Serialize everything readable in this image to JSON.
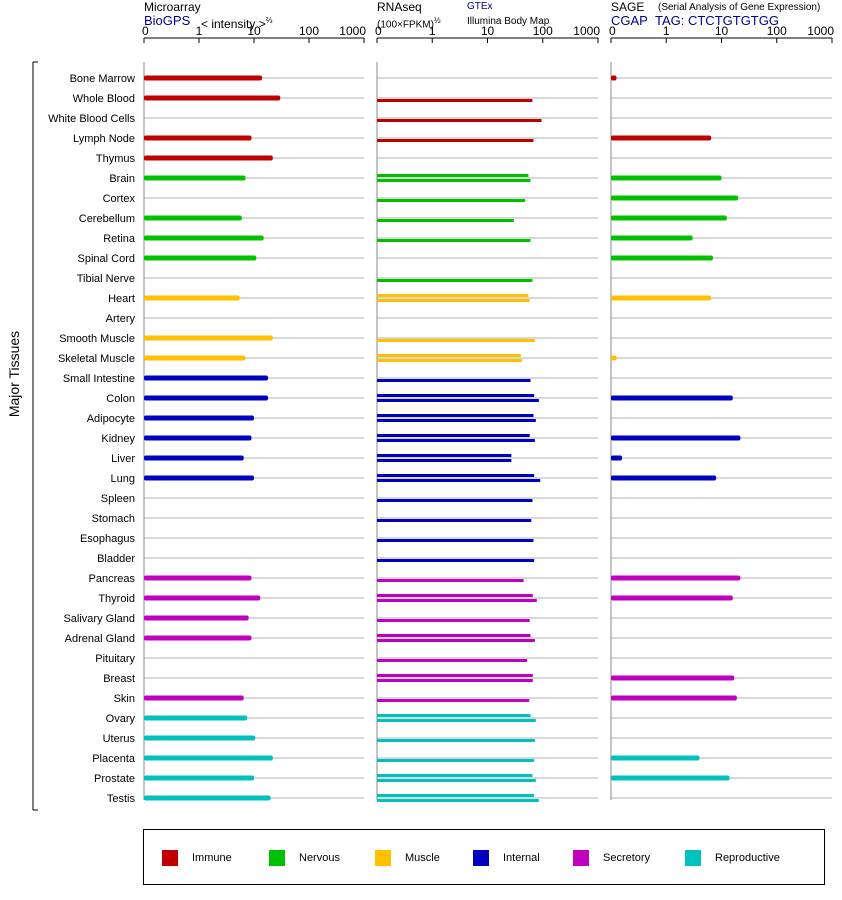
{
  "headers": {
    "microarray": {
      "title": "Microarray",
      "source": "BioGPS",
      "unit": "< intensity >",
      "unit_exp": "⅔"
    },
    "rnaseq": {
      "title": "RNAseq",
      "unit": "(100×FPKM)",
      "unit_exp": "½",
      "source1": "GTEx",
      "source2": "Illumina Body Map"
    },
    "sage": {
      "title": "SAGE",
      "subtitle": "(Serial Analysis of Gene Expression)",
      "source": "CGAP",
      "tag": "TAG: CTCTGTGTGG"
    }
  },
  "y_axis_label": "Major Tissues",
  "legend": [
    {
      "label": "Immune",
      "color": "#c00000"
    },
    {
      "label": "Nervous",
      "color": "#00c000"
    },
    {
      "label": "Muscle",
      "color": "#ffc000"
    },
    {
      "label": "Internal",
      "color": "#0000c0"
    },
    {
      "label": "Secretory",
      "color": "#c000c0"
    },
    {
      "label": "Reproductive",
      "color": "#00c0c0"
    }
  ],
  "chart_data": {
    "type": "bar",
    "orientation": "horizontal",
    "x_axis_ticks": [
      "0",
      "1",
      "10",
      "100",
      "1000"
    ],
    "x_scale": "log-like (0, 1, 10, 100, 1000)",
    "xlim": [
      0,
      1000
    ],
    "categories": [
      "Bone Marrow",
      "Whole Blood",
      "White Blood Cells",
      "Lymph Node",
      "Thymus",
      "Brain",
      "Cortex",
      "Cerebellum",
      "Retina",
      "Spinal Cord",
      "Tibial Nerve",
      "Heart",
      "Artery",
      "Smooth Muscle",
      "Skeletal Muscle",
      "Small Intestine",
      "Colon",
      "Adipocyte",
      "Kidney",
      "Liver",
      "Lung",
      "Spleen",
      "Stomach",
      "Esophagus",
      "Bladder",
      "Pancreas",
      "Thyroid",
      "Salivary Gland",
      "Adrenal Gland",
      "Pituitary",
      "Breast",
      "Skin",
      "Ovary",
      "Uterus",
      "Placenta",
      "Prostate",
      "Testis"
    ],
    "groups": [
      "Immune",
      "Immune",
      "Immune",
      "Immune",
      "Immune",
      "Nervous",
      "Nervous",
      "Nervous",
      "Nervous",
      "Nervous",
      "Nervous",
      "Muscle",
      "Muscle",
      "Muscle",
      "Muscle",
      "Internal",
      "Internal",
      "Internal",
      "Internal",
      "Internal",
      "Internal",
      "Internal",
      "Internal",
      "Internal",
      "Internal",
      "Secretory",
      "Secretory",
      "Secretory",
      "Secretory",
      "Secretory",
      "Secretory",
      "Secretory",
      "Reproductive",
      "Reproductive",
      "Reproductive",
      "Reproductive",
      "Reproductive"
    ],
    "series": [
      {
        "name": "Microarray",
        "values": [
          14,
          30,
          null,
          9,
          22,
          7,
          null,
          6,
          15,
          11,
          null,
          5.5,
          null,
          22,
          7,
          18,
          18,
          10,
          9,
          6.5,
          10,
          null,
          null,
          null,
          null,
          9,
          13,
          8,
          9,
          null,
          null,
          6.5,
          7.5,
          10.5,
          22,
          10,
          20
        ]
      },
      {
        "name": "RNAseq GTEx",
        "values": [
          null,
          65,
          95,
          68,
          null,
          55,
          48,
          30,
          60,
          null,
          65,
          55,
          null,
          72,
          40,
          60,
          70,
          68,
          58,
          27,
          70,
          65,
          62,
          68,
          70,
          45,
          66,
          58,
          60,
          52,
          66,
          57,
          60,
          72,
          70,
          65,
          70
        ]
      },
      {
        "name": "RNAseq Illumina Body Map",
        "values": [
          null,
          null,
          null,
          null,
          null,
          60,
          null,
          null,
          null,
          null,
          null,
          58,
          null,
          null,
          42,
          null,
          85,
          75,
          72,
          27,
          90,
          null,
          null,
          null,
          null,
          null,
          78,
          null,
          72,
          null,
          66,
          null,
          75,
          null,
          null,
          75,
          85
        ]
      },
      {
        "name": "SAGE",
        "values": [
          0.1,
          null,
          null,
          6.5,
          null,
          10,
          20,
          12.5,
          3,
          7,
          null,
          6.5,
          null,
          null,
          0.1,
          null,
          16,
          null,
          22,
          0.2,
          8,
          null,
          null,
          null,
          null,
          22,
          16,
          null,
          null,
          null,
          17,
          19,
          null,
          null,
          4,
          14,
          null
        ]
      }
    ]
  }
}
